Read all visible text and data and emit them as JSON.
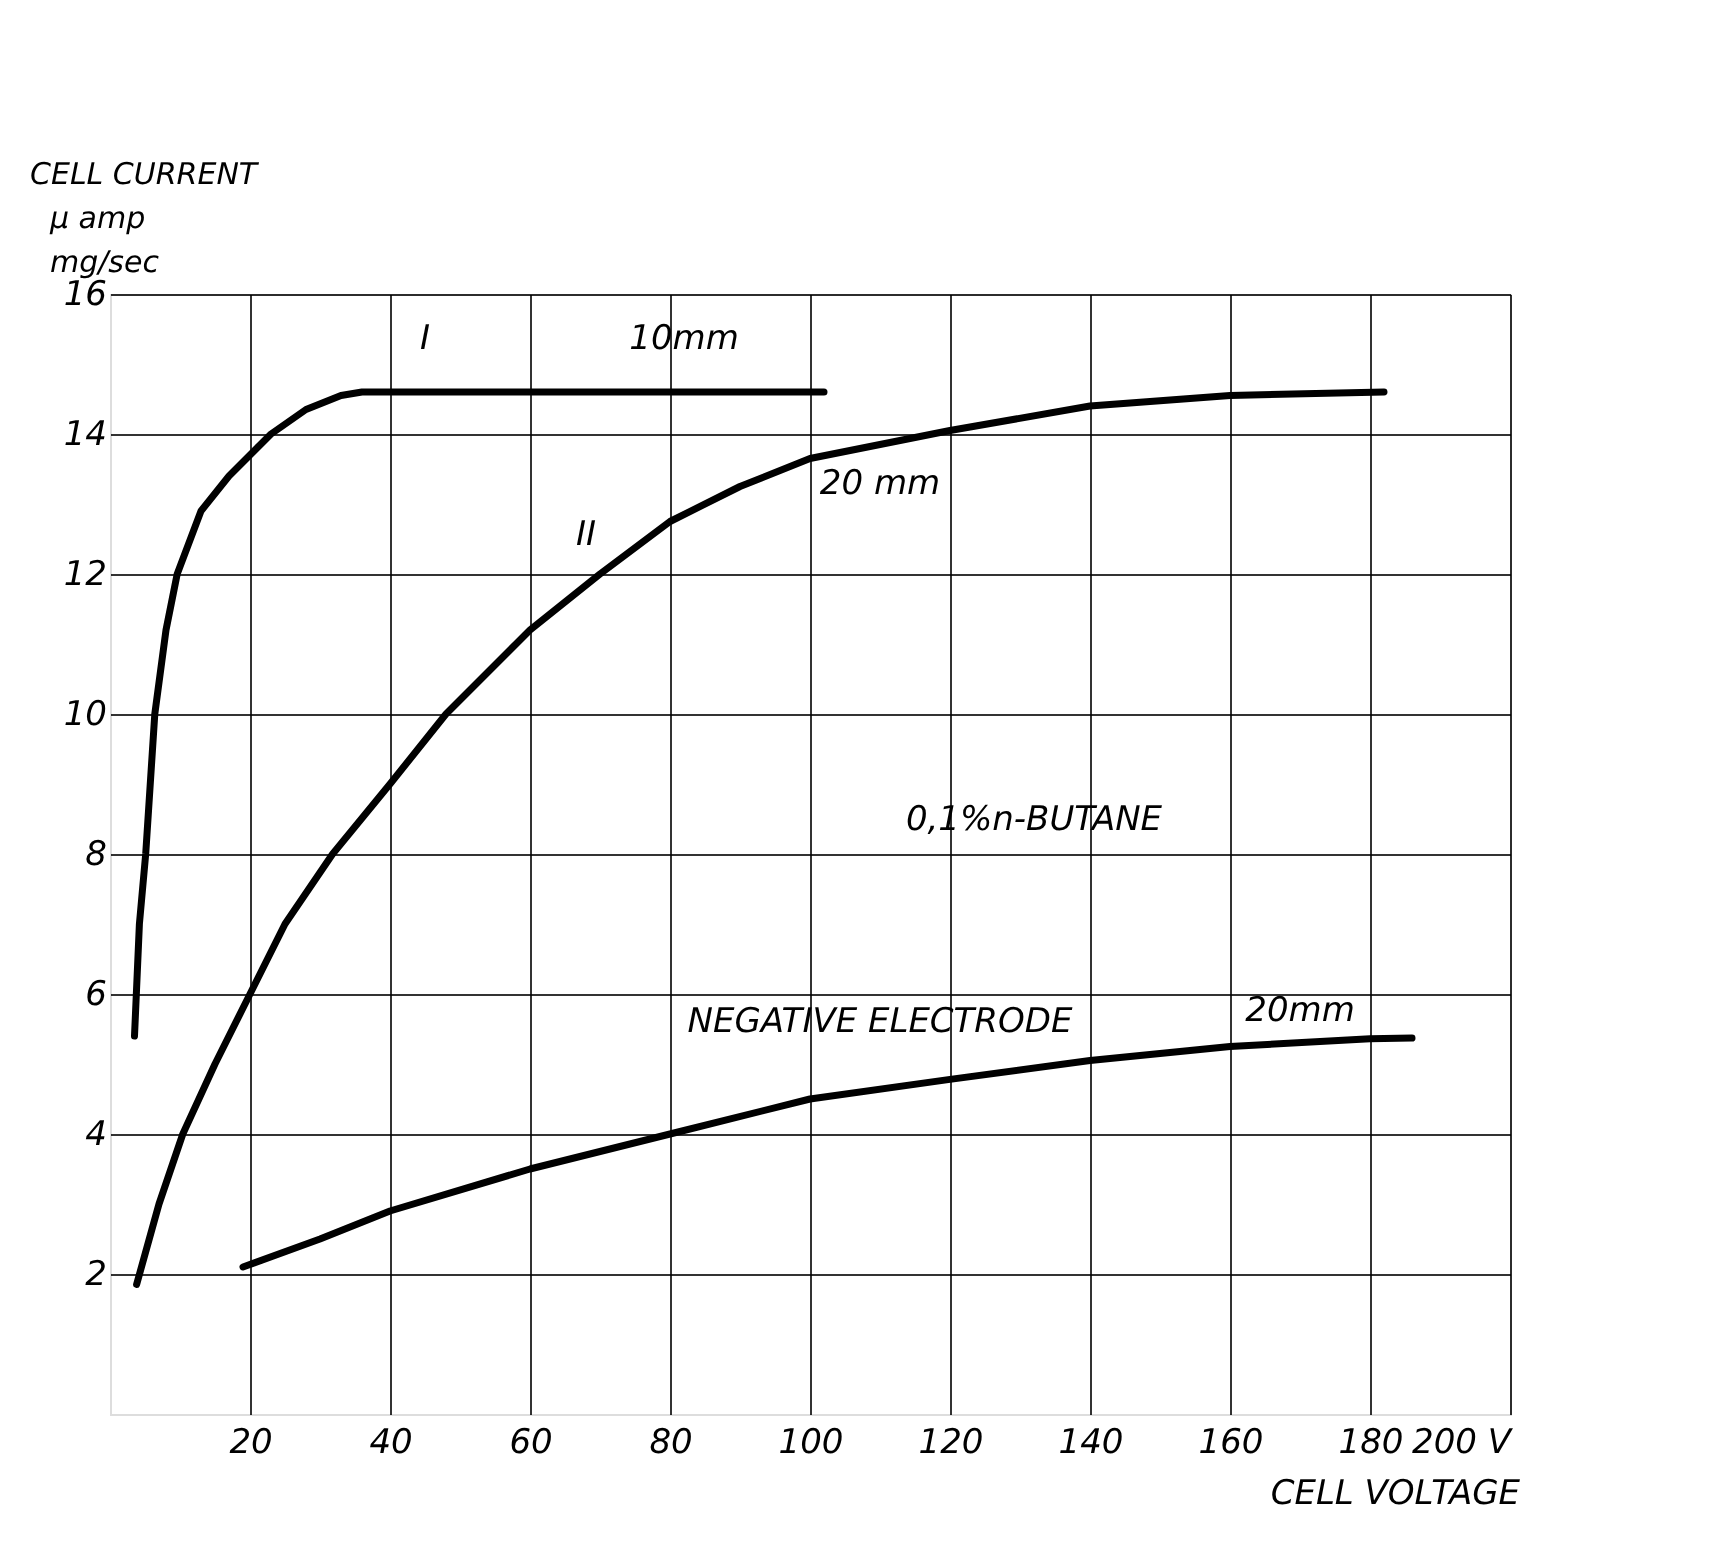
{
  "chart_data": {
    "type": "line",
    "xlabel": "CELL VOLTAGE",
    "ylabel": "CELL CURRENT\nμ amp\nmg/sec",
    "xlim": [
      0,
      200
    ],
    "ylim": [
      0,
      16
    ],
    "xticks": [
      20,
      40,
      60,
      80,
      100,
      120,
      140,
      160,
      180,
      {
        "value": 200,
        "label": "200 V"
      }
    ],
    "yticks": [
      2,
      4,
      6,
      8,
      10,
      12,
      14,
      16
    ],
    "grid": true,
    "line_style": "solid",
    "marker": "none",
    "series": [
      {
        "color": "#000000",
        "x": [
          3.5,
          4.2,
          5.1,
          6.4,
          8,
          9.6,
          13,
          17,
          20,
          23,
          28,
          33,
          36,
          45,
          60,
          80,
          102
        ],
        "values": [
          5.4,
          7,
          8,
          10,
          11.2,
          12,
          12.9,
          13.4,
          13.7,
          14,
          14.35,
          14.55,
          14.6,
          14.6,
          14.6,
          14.6,
          14.6
        ]
      },
      {
        "color": "#000000",
        "x": [
          3.8,
          7,
          10.4,
          15,
          20,
          25,
          31.8,
          40,
          48,
          60,
          70,
          80,
          90,
          100,
          120,
          140,
          160,
          182
        ],
        "values": [
          1.85,
          3,
          4,
          5,
          6,
          7,
          8,
          9,
          10,
          11.2,
          12,
          12.75,
          13.25,
          13.65,
          14.05,
          14.4,
          14.55,
          14.6
        ]
      },
      {
        "color": "#000000",
        "x": [
          19,
          30,
          40,
          60,
          80,
          100,
          120,
          140,
          160,
          180,
          186
        ],
        "values": [
          2.1,
          2.5,
          2.9,
          3.5,
          4.0,
          4.5,
          4.78,
          5.05,
          5.25,
          5.36,
          5.37
        ]
      }
    ],
    "annotations": [
      "I",
      "10mm",
      "II",
      "20 mm",
      "0,1%n-BUTANE",
      "NEGATIVE  ELECTRODE",
      "20mm"
    ]
  }
}
